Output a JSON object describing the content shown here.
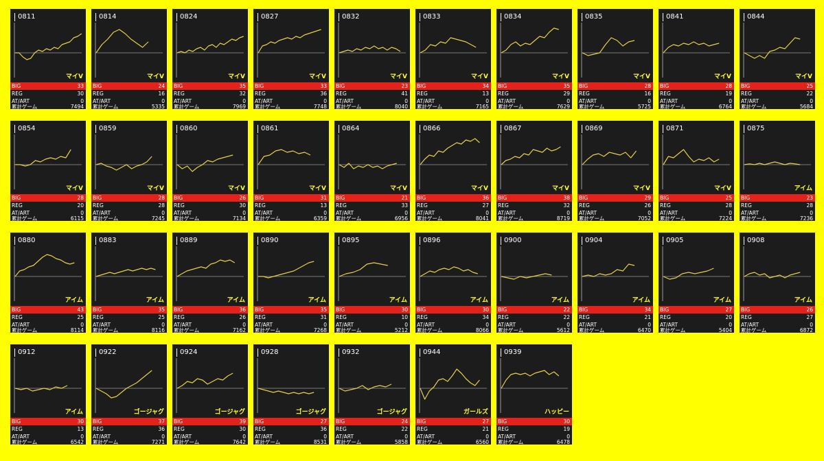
{
  "labels": {
    "big": "BIG",
    "reg": "REG",
    "at": "AT/ART",
    "games": "累計ゲーム"
  },
  "colors": {
    "page_bg": "#ffff00",
    "card_bg": "#1c1c1c",
    "line": "#e7d04a",
    "big_bar": "#e3231b",
    "type_text": "#ffff33",
    "baseline": "#9a9a9a"
  },
  "machines": [
    {
      "id": "0811",
      "type": "マイV",
      "big": "33",
      "reg": "30",
      "at": "0",
      "games": "7494",
      "trend": [
        0,
        0,
        -0.15,
        -0.25,
        -0.2,
        0,
        0.1,
        0.05,
        0.15,
        0.1,
        0.2,
        0.15,
        0.3,
        0.35,
        0.4,
        0.55,
        0.6,
        0.7
      ]
    },
    {
      "id": "0814",
      "type": "マイV",
      "big": "24",
      "reg": "16",
      "at": "0",
      "games": "5335",
      "trend": [
        0,
        0.3,
        0.5,
        0.75,
        0.85,
        0.7,
        0.5,
        0.35,
        0.2,
        0.4
      ]
    },
    {
      "id": "0824",
      "type": "マイV",
      "big": "35",
      "reg": "32",
      "at": "0",
      "games": "7969",
      "trend": [
        0,
        0.05,
        0,
        0.1,
        0.05,
        0.15,
        0.2,
        0.1,
        0.25,
        0.3,
        0.2,
        0.35,
        0.3,
        0.4,
        0.5,
        0.45,
        0.55,
        0.6
      ]
    },
    {
      "id": "0827",
      "type": "マイV",
      "big": "33",
      "reg": "36",
      "at": "0",
      "games": "7748",
      "trend": [
        0,
        0.25,
        0.3,
        0.4,
        0.35,
        0.45,
        0.5,
        0.55,
        0.5,
        0.6,
        0.55,
        0.65,
        0.7,
        0.75,
        0.8,
        0.85
      ]
    },
    {
      "id": "0832",
      "type": "マイV",
      "big": "23",
      "reg": "41",
      "at": "0",
      "games": "8040",
      "trend": [
        0,
        0.05,
        0.1,
        0.05,
        0.15,
        0.1,
        0.2,
        0.15,
        0.25,
        0.15,
        0.2,
        0.1,
        0.2,
        0.15,
        0.05
      ]
    },
    {
      "id": "0833",
      "type": "マイV",
      "big": "34",
      "reg": "13",
      "at": "0",
      "games": "7165",
      "trend": [
        0,
        0.1,
        0.3,
        0.25,
        0.4,
        0.35,
        0.55,
        0.5,
        0.45,
        0.4,
        0.3,
        0.2
      ]
    },
    {
      "id": "0834",
      "type": "マイV",
      "big": "35",
      "reg": "29",
      "at": "0",
      "games": "7629",
      "trend": [
        0,
        0.1,
        0.3,
        0.4,
        0.25,
        0.35,
        0.3,
        0.45,
        0.6,
        0.55,
        0.75,
        0.9,
        0.85
      ]
    },
    {
      "id": "0835",
      "type": "マイV",
      "big": "28",
      "reg": "16",
      "at": "0",
      "games": "5725",
      "trend": [
        0,
        -0.1,
        -0.05,
        0,
        0.3,
        0.55,
        0.45,
        0.25,
        0.4,
        0.45
      ]
    },
    {
      "id": "0841",
      "type": "マイV",
      "big": "28",
      "reg": "19",
      "at": "0",
      "games": "6764",
      "trend": [
        0,
        0.2,
        0.3,
        0.25,
        0.35,
        0.3,
        0.4,
        0.3,
        0.35,
        0.25,
        0.3,
        0.35
      ]
    },
    {
      "id": "0844",
      "type": "マイV",
      "big": "25",
      "reg": "22",
      "at": "0",
      "games": "5684",
      "trend": [
        0,
        -0.1,
        -0.2,
        -0.1,
        -0.2,
        0.05,
        0.1,
        0.2,
        0.15,
        0.35,
        0.55,
        0.5
      ]
    },
    {
      "id": "0854",
      "type": "マイV",
      "big": "28",
      "reg": "20",
      "at": "0",
      "games": "6115",
      "trend": [
        0,
        0,
        -0.05,
        0,
        0.15,
        0.1,
        0.2,
        0.25,
        0.2,
        0.3,
        0.25,
        0.55
      ]
    },
    {
      "id": "0859",
      "type": "マイV",
      "big": "28",
      "reg": "28",
      "at": "0",
      "games": "7245",
      "trend": [
        0,
        0.05,
        -0.05,
        -0.1,
        -0.2,
        -0.1,
        0,
        -0.15,
        -0.05,
        0,
        0.1,
        0.3
      ]
    },
    {
      "id": "0860",
      "type": "マイV",
      "big": "26",
      "reg": "30",
      "at": "0",
      "games": "7134",
      "trend": [
        0,
        -0.15,
        -0.05,
        -0.25,
        -0.1,
        0,
        0.15,
        0.1,
        0.2,
        0.25,
        0.3,
        0.35
      ]
    },
    {
      "id": "0861",
      "type": "マイV",
      "big": "31",
      "reg": "13",
      "at": "0",
      "games": "6359",
      "trend": [
        0,
        0.3,
        0.35,
        0.5,
        0.55,
        0.45,
        0.5,
        0.4,
        0.45,
        0.35
      ]
    },
    {
      "id": "0864",
      "type": "マイV",
      "big": "21",
      "reg": "33",
      "at": "0",
      "games": "6956",
      "trend": [
        0,
        -0.1,
        0.05,
        -0.15,
        -0.05,
        -0.1,
        0,
        -0.1,
        -0.05,
        -0.15,
        -0.05,
        0,
        0.05
      ]
    },
    {
      "id": "0866",
      "type": "マイV",
      "big": "36",
      "reg": "27",
      "at": "0",
      "games": "8041",
      "trend": [
        0,
        0.2,
        0.35,
        0.3,
        0.5,
        0.45,
        0.6,
        0.7,
        0.8,
        0.75,
        0.9,
        0.85,
        0.95,
        0.8
      ]
    },
    {
      "id": "0867",
      "type": "マイV",
      "big": "38",
      "reg": "32",
      "at": "0",
      "games": "8719",
      "trend": [
        0,
        0.15,
        0.2,
        0.3,
        0.25,
        0.4,
        0.35,
        0.55,
        0.5,
        0.45,
        0.6,
        0.5,
        0.55,
        0.65
      ]
    },
    {
      "id": "0869",
      "type": "マイV",
      "big": "29",
      "reg": "26",
      "at": "0",
      "games": "7052",
      "trend": [
        0,
        0.2,
        0.35,
        0.4,
        0.3,
        0.45,
        0.4,
        0.35,
        0.45,
        0.25,
        0.5
      ]
    },
    {
      "id": "0871",
      "type": "マイV",
      "big": "25",
      "reg": "28",
      "at": "0",
      "games": "7224",
      "trend": [
        0,
        0.3,
        0.25,
        0.4,
        0.55,
        0.3,
        0.1,
        0.2,
        0.15,
        0.25,
        0.1,
        0.2
      ]
    },
    {
      "id": "0875",
      "type": "アイム",
      "big": "23",
      "reg": "28",
      "at": "0",
      "games": "7236",
      "trend": [
        0,
        0.03,
        0,
        0.05,
        0,
        0.05,
        0.1,
        0.05,
        0,
        0.05,
        0.03,
        0
      ]
    },
    {
      "id": "0880",
      "type": "アイム",
      "big": "43",
      "reg": "25",
      "at": "0",
      "games": "8114",
      "trend": [
        0,
        0.2,
        0.25,
        0.35,
        0.4,
        0.55,
        0.7,
        0.8,
        0.75,
        0.65,
        0.6,
        0.5,
        0.45,
        0.5
      ]
    },
    {
      "id": "0883",
      "type": "アイム",
      "big": "35",
      "reg": "25",
      "at": "0",
      "games": "8116",
      "trend": [
        0,
        0.05,
        0.1,
        0.15,
        0.1,
        0.15,
        0.2,
        0.25,
        0.2,
        0.25,
        0.3,
        0.25,
        0.3,
        0.25
      ]
    },
    {
      "id": "0889",
      "type": "アイム",
      "big": "36",
      "reg": "26",
      "at": "0",
      "games": "7162",
      "trend": [
        0,
        0.1,
        0.2,
        0.25,
        0.3,
        0.35,
        0.3,
        0.45,
        0.5,
        0.6,
        0.55,
        0.6,
        0.5
      ]
    },
    {
      "id": "0890",
      "type": "アイム",
      "big": "35",
      "reg": "31",
      "at": "0",
      "games": "7268",
      "trend": [
        0,
        0,
        -0.05,
        0,
        0.05,
        0.1,
        0.15,
        0.2,
        0.3,
        0.4,
        0.5,
        0.55
      ]
    },
    {
      "id": "0895",
      "type": "アイム",
      "big": "30",
      "reg": "10",
      "at": "0",
      "games": "5212",
      "trend": [
        0,
        0.1,
        0.15,
        0.25,
        0.45,
        0.5,
        0.45,
        0.4
      ]
    },
    {
      "id": "0896",
      "type": "アイム",
      "big": "30",
      "reg": "34",
      "at": "0",
      "games": "8066",
      "trend": [
        0,
        0.1,
        0.2,
        0.15,
        0.25,
        0.3,
        0.25,
        0.35,
        0.3,
        0.2,
        0.25,
        0.15,
        0.1
      ]
    },
    {
      "id": "0900",
      "type": "アイム",
      "big": "22",
      "reg": "22",
      "at": "0",
      "games": "5612",
      "trend": [
        0,
        -0.05,
        -0.1,
        0,
        -0.05,
        0,
        0.05,
        0.1,
        0.05
      ]
    },
    {
      "id": "0904",
      "type": "アイム",
      "big": "34",
      "reg": "21",
      "at": "0",
      "games": "6470",
      "trend": [
        0,
        0.05,
        0,
        0.1,
        0.05,
        0.1,
        0.25,
        0.2,
        0.45,
        0.4
      ]
    },
    {
      "id": "0905",
      "type": "アイム",
      "big": "27",
      "reg": "20",
      "at": "0",
      "games": "5404",
      "trend": [
        0,
        -0.1,
        -0.05,
        0.1,
        0.15,
        0.1,
        0.15,
        0.2,
        0.3
      ]
    },
    {
      "id": "0908",
      "type": "アイム",
      "big": "26",
      "reg": "27",
      "at": "0",
      "games": "6872",
      "trend": [
        0,
        0.1,
        0.15,
        0.05,
        0.1,
        -0.05,
        0,
        0.05,
        -0.05,
        0.05,
        0.1,
        0.15
      ]
    },
    {
      "id": "0912",
      "type": "アイム",
      "big": "30",
      "reg": "13",
      "at": "0",
      "games": "6542",
      "trend": [
        0,
        -0.05,
        0,
        -0.1,
        -0.05,
        0,
        -0.05,
        0.05,
        0,
        0.1
      ]
    },
    {
      "id": "0922",
      "type": "ゴージャグ",
      "big": "37",
      "reg": "36",
      "at": "0",
      "games": "7271",
      "trend": [
        0,
        -0.1,
        -0.2,
        -0.35,
        -0.3,
        -0.15,
        0,
        0.1,
        0.2,
        0.35,
        0.5,
        0.65
      ]
    },
    {
      "id": "0924",
      "type": "ゴージャグ",
      "big": "39",
      "reg": "30",
      "at": "0",
      "games": "7642",
      "trend": [
        0,
        0.1,
        0.25,
        0.2,
        0.35,
        0.3,
        0.15,
        0.25,
        0.35,
        0.3,
        0.45,
        0.55
      ]
    },
    {
      "id": "0928",
      "type": "ゴージャグ",
      "big": "27",
      "reg": "36",
      "at": "0",
      "games": "8531",
      "trend": [
        0,
        -0.05,
        -0.1,
        -0.15,
        -0.1,
        -0.15,
        -0.2,
        -0.15,
        -0.2,
        -0.15,
        -0.2,
        -0.15
      ]
    },
    {
      "id": "0932",
      "type": "ゴージャグ",
      "big": "24",
      "reg": "22",
      "at": "0",
      "games": "5858",
      "trend": [
        0,
        -0.1,
        -0.05,
        0,
        0.1,
        -0.05,
        0.05,
        0.1,
        0.05,
        0.15
      ]
    },
    {
      "id": "0944",
      "type": "ガールズ",
      "big": "27",
      "reg": "21",
      "at": "0",
      "games": "6560",
      "trend": [
        0,
        -0.4,
        -0.1,
        0.05,
        0.3,
        0.35,
        0.25,
        0.45,
        0.7,
        0.55,
        0.35,
        0.2,
        0.1,
        0.3
      ]
    },
    {
      "id": "0939",
      "type": "ハッピー",
      "big": "30",
      "reg": "19",
      "at": "0",
      "games": "6478",
      "trend": [
        0,
        0.3,
        0.5,
        0.55,
        0.5,
        0.55,
        0.45,
        0.55,
        0.6,
        0.65,
        0.5,
        0.6,
        0.45
      ]
    }
  ]
}
